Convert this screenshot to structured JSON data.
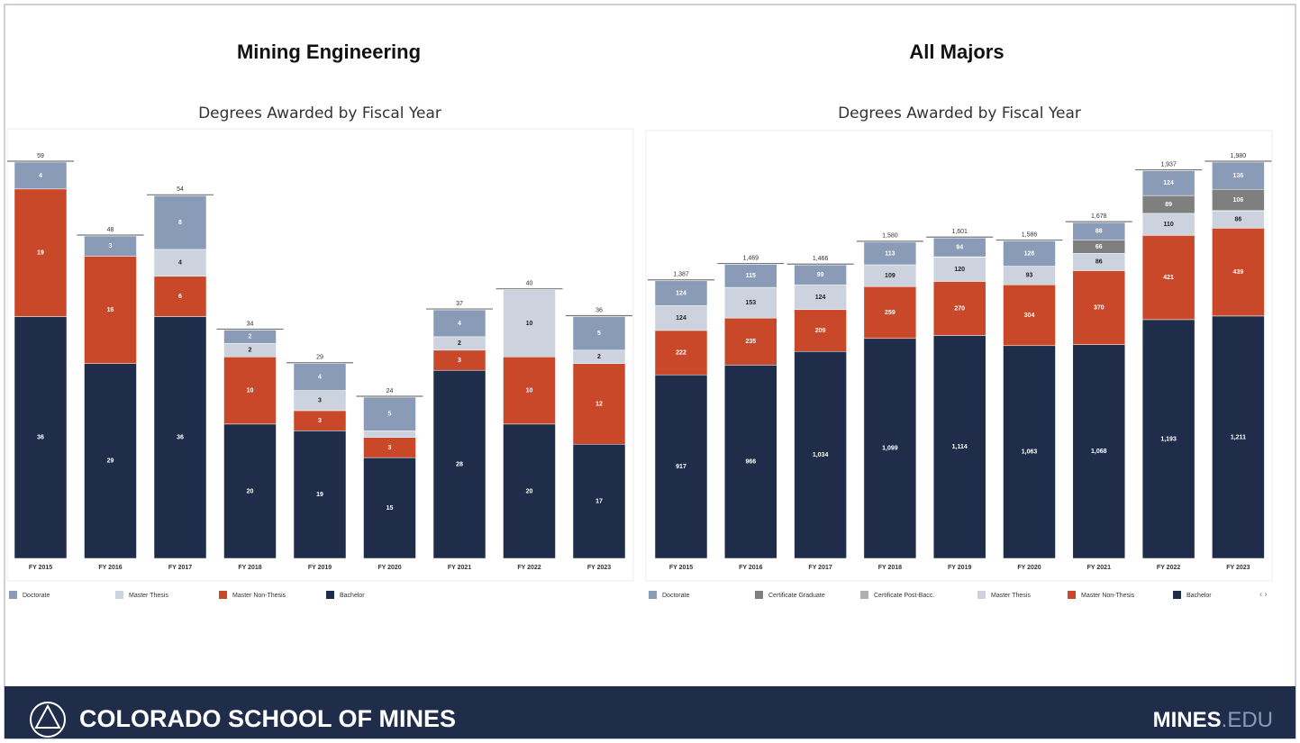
{
  "chart_data": [
    {
      "type": "stacked-bar",
      "title": "Mining Engineering",
      "subtitle": "Degrees Awarded by Fiscal Year",
      "categories": [
        "FY 2015",
        "FY 2016",
        "FY 2017",
        "FY 2018",
        "FY 2019",
        "FY 2020",
        "FY 2021",
        "FY 2022",
        "FY 2023"
      ],
      "series": [
        {
          "name": "Doctorate",
          "color": "#8a9bb8",
          "values": [
            4,
            3,
            8,
            2,
            4,
            5,
            4,
            null,
            5
          ]
        },
        {
          "name": "Master Thesis",
          "color": "#ccd3de",
          "values": [
            null,
            null,
            4,
            2,
            3,
            1,
            2,
            10,
            2
          ]
        },
        {
          "name": "Master Non-Thesis",
          "color": "#c9482a",
          "values": [
            19,
            16,
            6,
            10,
            3,
            3,
            3,
            10,
            12
          ]
        },
        {
          "name": "Bachelor",
          "color": "#1f2d4b",
          "values": [
            36,
            29,
            36,
            20,
            19,
            15,
            28,
            20,
            17
          ]
        }
      ],
      "totals": [
        59,
        48,
        54,
        34,
        29,
        24,
        37,
        40,
        36
      ]
    },
    {
      "type": "stacked-bar",
      "title": "All Majors",
      "subtitle": "Degrees Awarded by Fiscal Year",
      "categories": [
        "FY 2015",
        "FY 2016",
        "FY 2017",
        "FY 2018",
        "FY 2019",
        "FY 2020",
        "FY 2021",
        "FY 2022",
        "FY 2023"
      ],
      "series": [
        {
          "name": "Doctorate",
          "color": "#8a9bb8",
          "values": [
            124,
            115,
            99,
            113,
            94,
            126,
            88,
            124,
            136
          ]
        },
        {
          "name": "Certificate Graduate",
          "color": "#7f7f7f",
          "values": [
            null,
            null,
            null,
            null,
            null,
            null,
            66,
            89,
            106
          ]
        },
        {
          "name": "Certificate Post-Bacc.",
          "color": "#b0b0b0",
          "values": [
            null,
            null,
            null,
            null,
            3,
            null,
            null,
            null,
            2
          ]
        },
        {
          "name": "Master Thesis",
          "color": "#ccd3de",
          "values": [
            124,
            153,
            124,
            109,
            120,
            93,
            86,
            110,
            86
          ]
        },
        {
          "name": "Master Non-Thesis",
          "color": "#c9482a",
          "values": [
            222,
            235,
            209,
            259,
            270,
            304,
            370,
            421,
            439
          ]
        },
        {
          "name": "Bachelor",
          "color": "#1f2d4b",
          "values": [
            917,
            966,
            1034,
            1099,
            1114,
            1063,
            1068,
            1193,
            1211
          ],
          "value_labels": [
            "917",
            "966",
            "1,034",
            "1,099",
            "1,114",
            "1,063",
            "1,068",
            "1,193",
            "1,211"
          ]
        }
      ],
      "totals": [
        1387,
        1469,
        1466,
        1580,
        1601,
        1586,
        1678,
        1937,
        1980
      ],
      "total_labels": [
        "1,387",
        "1,469",
        "1,466",
        "1,580",
        "1,601",
        "1,586",
        "1,678",
        "1,937",
        "1,980"
      ]
    }
  ],
  "footer": {
    "brand": "COLORADO SCHOOL OF MINES",
    "site": "MINES",
    "site_suffix": ".EDU"
  }
}
